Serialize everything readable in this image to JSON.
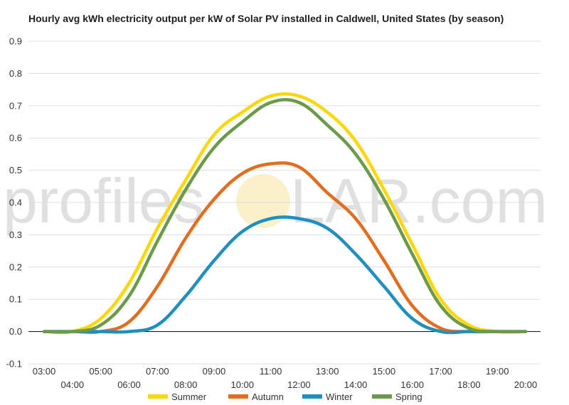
{
  "chart_data": {
    "type": "line",
    "title": "Hourly avg kWh electricity output per kW of Solar PV installed in Caldwell, United States (by season)",
    "xlabel": "",
    "ylabel": "",
    "x": [
      "03:00",
      "04:00",
      "05:00",
      "06:00",
      "07:00",
      "08:00",
      "09:00",
      "10:00",
      "11:00",
      "12:00",
      "13:00",
      "14:00",
      "15:00",
      "16:00",
      "17:00",
      "18:00",
      "19:00",
      "20:00"
    ],
    "x_ticks_upper": [
      "03:00",
      "05:00",
      "07:00",
      "09:00",
      "11:00",
      "13:00",
      "15:00",
      "17:00",
      "19:00"
    ],
    "x_ticks_lower": [
      "04:00",
      "06:00",
      "08:00",
      "10:00",
      "12:00",
      "14:00",
      "16:00",
      "18:00",
      "20:00"
    ],
    "ylim": [
      -0.1,
      0.9
    ],
    "y_ticks": [
      "0.9",
      "0.8",
      "0.7",
      "0.6",
      "0.5",
      "0.4",
      "0.3",
      "0.2",
      "0.1",
      "0.0",
      "-0.1"
    ],
    "grid": true,
    "legend_position": "bottom",
    "series": [
      {
        "name": "Summer",
        "color": "#ffd700",
        "values": [
          0.0,
          0.0,
          0.04,
          0.15,
          0.32,
          0.47,
          0.61,
          0.68,
          0.73,
          0.73,
          0.68,
          0.59,
          0.44,
          0.27,
          0.1,
          0.02,
          0.0,
          0.0
        ]
      },
      {
        "name": "Autumn",
        "color": "#e36c1d",
        "values": [
          0.0,
          0.0,
          0.0,
          0.03,
          0.14,
          0.29,
          0.41,
          0.49,
          0.52,
          0.51,
          0.43,
          0.35,
          0.22,
          0.08,
          0.01,
          0.0,
          0.0,
          0.0
        ]
      },
      {
        "name": "Winter",
        "color": "#1f8fc1",
        "values": [
          0.0,
          0.0,
          0.0,
          0.0,
          0.02,
          0.11,
          0.22,
          0.31,
          0.35,
          0.35,
          0.32,
          0.24,
          0.14,
          0.04,
          0.0,
          0.0,
          0.0,
          0.0
        ]
      },
      {
        "name": "Spring",
        "color": "#6a9a4a",
        "values": [
          0.0,
          0.0,
          0.02,
          0.11,
          0.28,
          0.44,
          0.57,
          0.65,
          0.71,
          0.71,
          0.64,
          0.55,
          0.41,
          0.24,
          0.08,
          0.01,
          0.0,
          0.0
        ]
      }
    ]
  },
  "watermark": {
    "text_left": "profilesO",
    "text_right": "LAR.com",
    "color": "#c8c8c8",
    "sun_color": "#f7e7a8"
  }
}
